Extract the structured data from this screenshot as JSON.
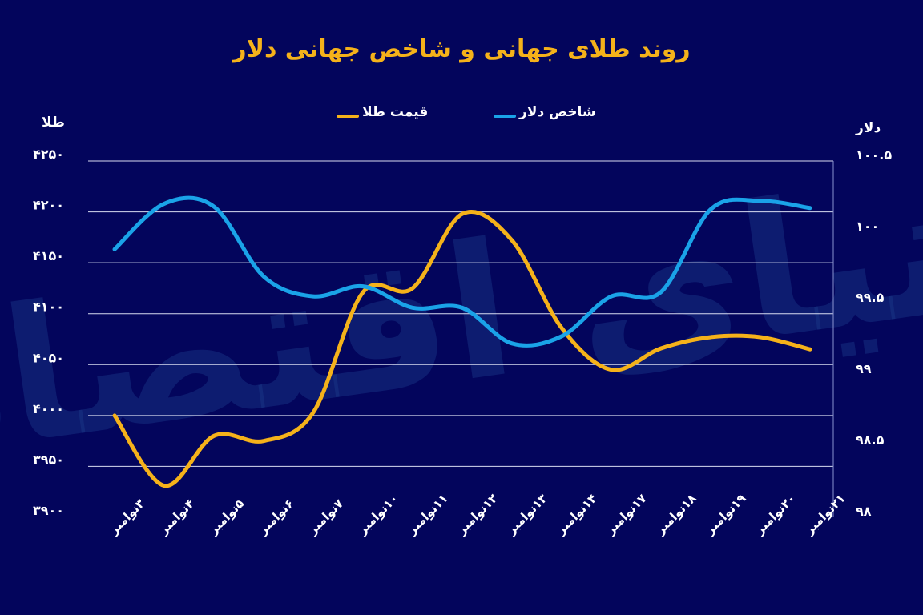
{
  "chart_data": {
    "type": "line",
    "title": "روند طلای جهانی و شاخص جهانی دلار",
    "categories": [
      "۳نوامبر",
      "۴نوامبر",
      "۵نوامبر",
      "۶نوامبر",
      "۷نوامبر",
      "۱۰نوامبر",
      "۱۱نوامبر",
      "۱۲نوامبر",
      "۱۳نوامبر",
      "۱۴نوامبر",
      "۱۷نوامبر",
      "۱۸نوامبر",
      "۱۹نوامبر",
      "۲۰نوامبر",
      "۲۱نوامبر"
    ],
    "y_left": {
      "label": "طلا",
      "ylim": [
        3900,
        4250
      ],
      "ticks": [
        3900,
        3950,
        4000,
        4050,
        4100,
        4150,
        4200,
        4250
      ],
      "tick_labels": [
        "۳۹۰۰",
        "۳۹۵۰",
        "۴۰۰۰",
        "۴۰۵۰",
        "۴۱۰۰",
        "۴۱۵۰",
        "۴۲۰۰",
        "۴۲۵۰"
      ]
    },
    "y_right": {
      "label": "دلار",
      "ylim": [
        98,
        100.5
      ],
      "ticks": [
        98,
        98.5,
        99,
        99.5,
        100,
        100.5
      ],
      "tick_labels": [
        "۹۸",
        "۹۸.۵",
        "۹۹",
        "۹۹.۵",
        "۱۰۰",
        "۱۰۰.۵"
      ]
    },
    "series": [
      {
        "name": "قیمت طلا",
        "axis": "left",
        "color": "#f5b21a",
        "values": [
          4000,
          3931,
          3980,
          3975,
          4003,
          4121,
          4125,
          4198,
          4172,
          4086,
          4045,
          4066,
          4077,
          4077,
          4065
        ]
      },
      {
        "name": "شاخص دلار",
        "axis": "right",
        "color": "#1aa3e8",
        "values": [
          99.88,
          100.2,
          100.18,
          99.69,
          99.55,
          99.62,
          99.47,
          99.47,
          99.22,
          99.27,
          99.55,
          99.58,
          100.16,
          100.22,
          100.17
        ]
      }
    ],
    "grid": true,
    "legend": "top"
  },
  "watermark": "دنیای اقتصاد"
}
